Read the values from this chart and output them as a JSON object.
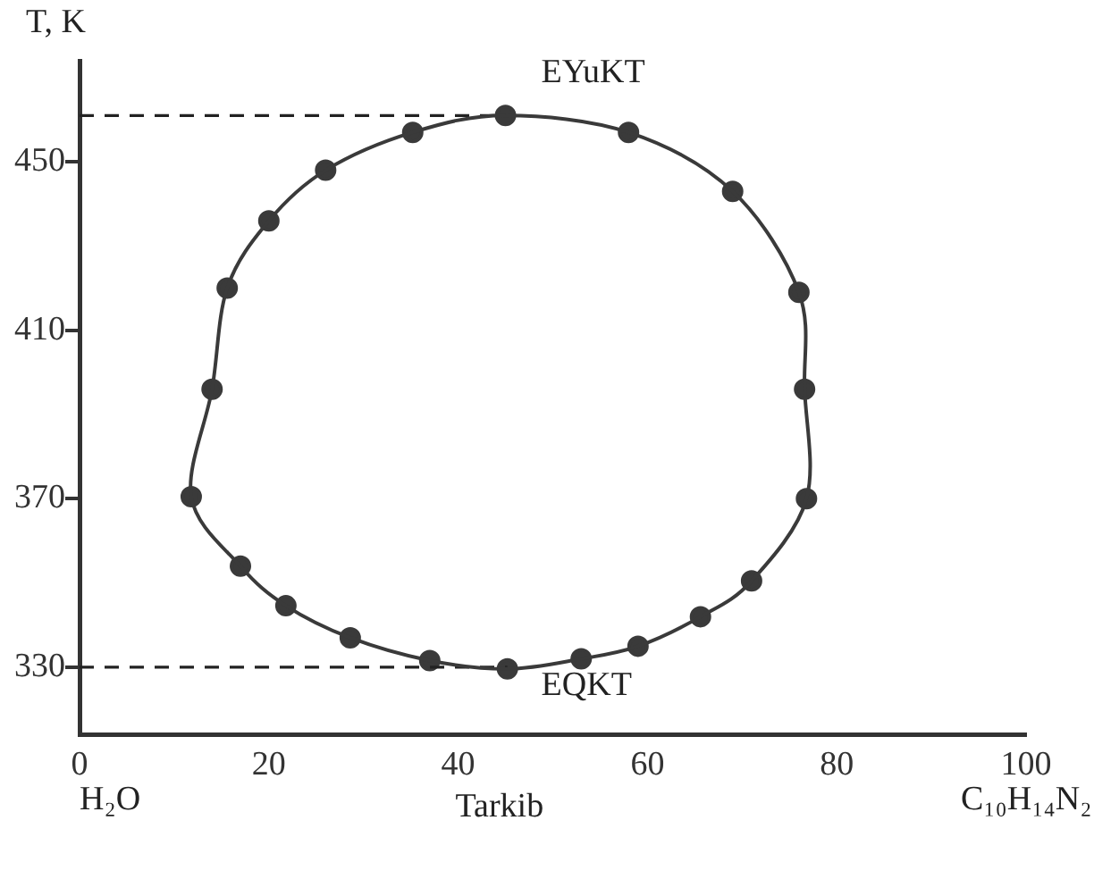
{
  "chart_data": {
    "type": "scatter",
    "xlabel": "Tarkib",
    "ylabel": "T, K",
    "series": [
      {
        "color": "#3a3a3a",
        "x": [
          45.2,
          37,
          28.6,
          21.8,
          17,
          11.8,
          14,
          15.6,
          20,
          26,
          35.2,
          45,
          58,
          69,
          76,
          76.6,
          76.8,
          71,
          65.6,
          59,
          53
        ],
        "values": [
          329.6,
          331.6,
          337,
          344.6,
          354,
          370.5,
          396,
          420,
          436,
          448,
          457,
          461,
          457,
          443,
          419,
          396,
          370,
          350.5,
          342,
          335,
          332
        ]
      }
    ],
    "xlim": [
      0,
      100
    ],
    "ylim": [
      314,
      474
    ],
    "xticks": [
      0,
      20,
      40,
      60,
      80,
      100
    ],
    "yticks": [
      330,
      370,
      410,
      450
    ],
    "grid": false,
    "legend": false,
    "marker": "circle",
    "ref_lines": [
      {
        "axis": "y",
        "value": 461,
        "line_style": "dashed",
        "color": "#222222"
      },
      {
        "axis": "y",
        "value": 330,
        "line_style": "dashed",
        "color": "#222222"
      }
    ],
    "annotations": [
      {
        "text": "EYuKT",
        "x": 45,
        "y": 461
      },
      {
        "text": "EQKT",
        "x": 45,
        "y": 330
      },
      "H₂O",
      "C₁₀H₁₄N₂"
    ]
  }
}
